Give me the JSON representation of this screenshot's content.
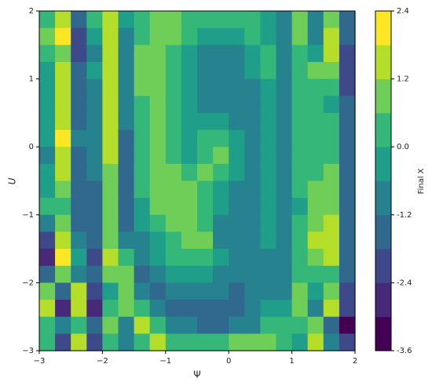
{
  "chart_data": {
    "type": "contourf",
    "xlabel": "Ψ",
    "ylabel": "U",
    "colorbar_label": "Final X",
    "xlim": [
      -3,
      2
    ],
    "ylim": [
      -3,
      2
    ],
    "xticks": [
      {
        "value": -3,
        "label": "−3"
      },
      {
        "value": -2,
        "label": "−2"
      },
      {
        "value": -1,
        "label": "−1"
      },
      0,
      1,
      2
    ],
    "yticks": [
      {
        "value": -3,
        "label": "−3"
      },
      {
        "value": -2,
        "label": "−2"
      },
      {
        "value": -1,
        "label": "−1"
      },
      0,
      1,
      2
    ],
    "zlim": [
      -3.6,
      2.4
    ],
    "cbar_ticks": [
      -3.6,
      -2.4,
      -1.2,
      {
        "value": 0,
        "label": "0.0"
      },
      1.2,
      2.4
    ],
    "levels": [
      -3.6,
      -3.0,
      -2.4,
      -1.8,
      -1.2,
      -0.6,
      0,
      0.6,
      1.2,
      1.8,
      2.4
    ],
    "colors": [
      "#440154",
      "#482878",
      "#3e4989",
      "#31688e",
      "#26828e",
      "#1f9e89",
      "#35b779",
      "#6ece58",
      "#b5de2b",
      "#fde725"
    ],
    "x": [
      -2.875,
      -2.625,
      -2.375,
      -2.125,
      -1.875,
      -1.625,
      -1.375,
      -1.125,
      -0.875,
      -0.625,
      -0.375,
      -0.125,
      0.125,
      0.375,
      0.625,
      0.875,
      1.125,
      1.375,
      1.625,
      1.875
    ],
    "y": [
      1.875,
      1.625,
      1.375,
      1.125,
      0.875,
      0.625,
      0.375,
      0.125,
      -0.125,
      -0.375,
      -0.625,
      -0.875,
      -1.125,
      -1.375,
      -1.625,
      -1.875,
      -2.125,
      -2.375,
      -2.625,
      -2.875
    ],
    "z": [
      [
        0.3,
        1.6,
        -1.5,
        0.2,
        1.3,
        -0.5,
        0.5,
        1.0,
        0.8,
        0.3,
        0.2,
        0.1,
        0.2,
        0.3,
        -0.3,
        -0.8,
        0.7,
        -0.9,
        1.0,
        -1.4
      ],
      [
        0.9,
        2.0,
        -1.8,
        -0.3,
        1.5,
        -0.8,
        0.6,
        1.0,
        0.7,
        0.1,
        -0.4,
        -0.5,
        -0.3,
        0.1,
        0.0,
        -0.9,
        0.8,
        -0.6,
        1.3,
        -1.6
      ],
      [
        0.2,
        1.0,
        -2.0,
        -0.8,
        1.3,
        -1.0,
        0.7,
        0.9,
        0.5,
        -0.3,
        -0.7,
        -0.8,
        -0.6,
        -0.2,
        0.2,
        -0.9,
        0.6,
        0.0,
        1.5,
        -1.8
      ],
      [
        -0.2,
        1.3,
        -1.7,
        -0.5,
        1.4,
        -1.0,
        0.8,
        0.9,
        0.3,
        -0.5,
        -0.8,
        -0.9,
        -0.8,
        -0.5,
        0.1,
        -0.8,
        0.5,
        1.2,
        1.0,
        -1.8
      ],
      [
        -0.3,
        1.5,
        -1.5,
        -0.6,
        1.6,
        -1.0,
        0.7,
        0.8,
        0.3,
        -0.5,
        -0.9,
        -0.9,
        -0.8,
        -0.6,
        0.0,
        -0.7,
        0.4,
        0.6,
        0.4,
        -1.9
      ],
      [
        -0.4,
        1.7,
        -1.3,
        -0.7,
        1.7,
        -1.1,
        0.6,
        0.9,
        0.4,
        -0.5,
        -0.7,
        -0.7,
        -0.8,
        -0.6,
        0.0,
        -0.6,
        0.4,
        0.2,
        0.0,
        -1.7
      ],
      [
        -0.4,
        1.8,
        -1.2,
        -0.8,
        1.5,
        -1.1,
        0.5,
        1.0,
        0.4,
        -0.4,
        -0.4,
        -0.5,
        -0.6,
        -0.7,
        -0.1,
        -0.6,
        0.4,
        0.4,
        0.3,
        -1.6
      ],
      [
        -0.5,
        1.9,
        -1.1,
        -0.8,
        1.4,
        -1.2,
        0.4,
        1.0,
        0.5,
        -0.3,
        0.3,
        0.4,
        -0.5,
        -0.7,
        -0.1,
        -0.7,
        0.3,
        0.2,
        0.2,
        -1.5
      ],
      [
        -0.6,
        1.8,
        -1.2,
        -0.9,
        1.3,
        -1.2,
        0.3,
        1.0,
        0.6,
        -0.2,
        0.5,
        0.7,
        -0.3,
        -0.7,
        -0.1,
        -0.8,
        0.2,
        0.3,
        0.5,
        -1.5
      ],
      [
        -0.4,
        1.6,
        -1.3,
        -1.0,
        1.2,
        -1.3,
        0.2,
        1.0,
        0.7,
        0.2,
        0.8,
        0.3,
        -0.4,
        -0.8,
        -0.2,
        -0.8,
        0.2,
        0.4,
        0.8,
        -1.4
      ],
      [
        -0.2,
        1.2,
        -1.5,
        -1.2,
        1.1,
        -1.4,
        0.1,
        0.9,
        0.8,
        0.7,
        0.5,
        -0.2,
        -0.6,
        -0.8,
        -0.2,
        -0.9,
        0.1,
        0.7,
        1.0,
        -1.5
      ],
      [
        0.1,
        0.6,
        -1.7,
        -1.4,
        1.0,
        -1.6,
        -0.1,
        0.7,
        0.9,
        0.8,
        0.1,
        -0.5,
        -0.7,
        -0.8,
        -0.3,
        -0.9,
        0.0,
        1.0,
        1.2,
        -1.6
      ],
      [
        -0.8,
        1.0,
        -1.2,
        -1.2,
        0.9,
        -1.2,
        -0.3,
        0.3,
        0.8,
        0.8,
        0.6,
        -0.6,
        -0.8,
        -0.8,
        -0.4,
        -1.0,
        0.1,
        1.1,
        1.3,
        -1.5
      ],
      [
        -2.3,
        1.6,
        -0.7,
        -1.6,
        1.2,
        -0.6,
        -0.6,
        0.0,
        0.6,
        0.8,
        0.9,
        -0.6,
        -0.9,
        -0.9,
        -0.5,
        -1.1,
        0.2,
        1.4,
        1.7,
        -1.3
      ],
      [
        -2.8,
        1.9,
        -0.5,
        -1.8,
        1.3,
        0.2,
        -0.9,
        -0.3,
        0.3,
        0.4,
        0.3,
        -0.4,
        -0.9,
        -0.9,
        -0.6,
        -1.1,
        0.4,
        0.9,
        1.5,
        -1.3
      ],
      [
        -1.2,
        0.8,
        -1.0,
        -1.4,
        0.8,
        1.0,
        -1.2,
        -0.8,
        -0.2,
        -0.3,
        -0.4,
        -0.6,
        -0.9,
        -1.0,
        -0.7,
        -1.0,
        0.6,
        0.2,
        0.6,
        -1.6
      ],
      [
        1.2,
        -1.5,
        1.3,
        -2.1,
        -0.3,
        1.2,
        -1.1,
        -1.3,
        -0.8,
        -0.8,
        -0.9,
        -1.0,
        -1.2,
        -1.1,
        -0.8,
        -0.7,
        0.8,
        -0.4,
        1.0,
        -1.9
      ],
      [
        1.5,
        -2.5,
        1.8,
        -2.6,
        0.3,
        1.0,
        0.6,
        -1.1,
        -1.4,
        -1.4,
        -1.3,
        -1.2,
        -1.4,
        -1.1,
        -0.5,
        -0.2,
        0.7,
        -0.9,
        1.3,
        -2.3
      ],
      [
        0.3,
        -0.8,
        0.5,
        -1.5,
        1.0,
        -0.6,
        1.4,
        0.4,
        -0.6,
        -1.0,
        -1.2,
        -1.2,
        -1.0,
        -0.7,
        0.2,
        0.5,
        0.2,
        0.9,
        -1.3,
        -3.0
      ],
      [
        0.6,
        -1.9,
        1.5,
        -2.2,
        0.6,
        -1.0,
        0.4,
        1.3,
        0.6,
        0.4,
        0.2,
        0.5,
        0.7,
        0.9,
        0.8,
        0.2,
        -0.4,
        1.7,
        -1.0,
        -2.2
      ]
    ]
  }
}
